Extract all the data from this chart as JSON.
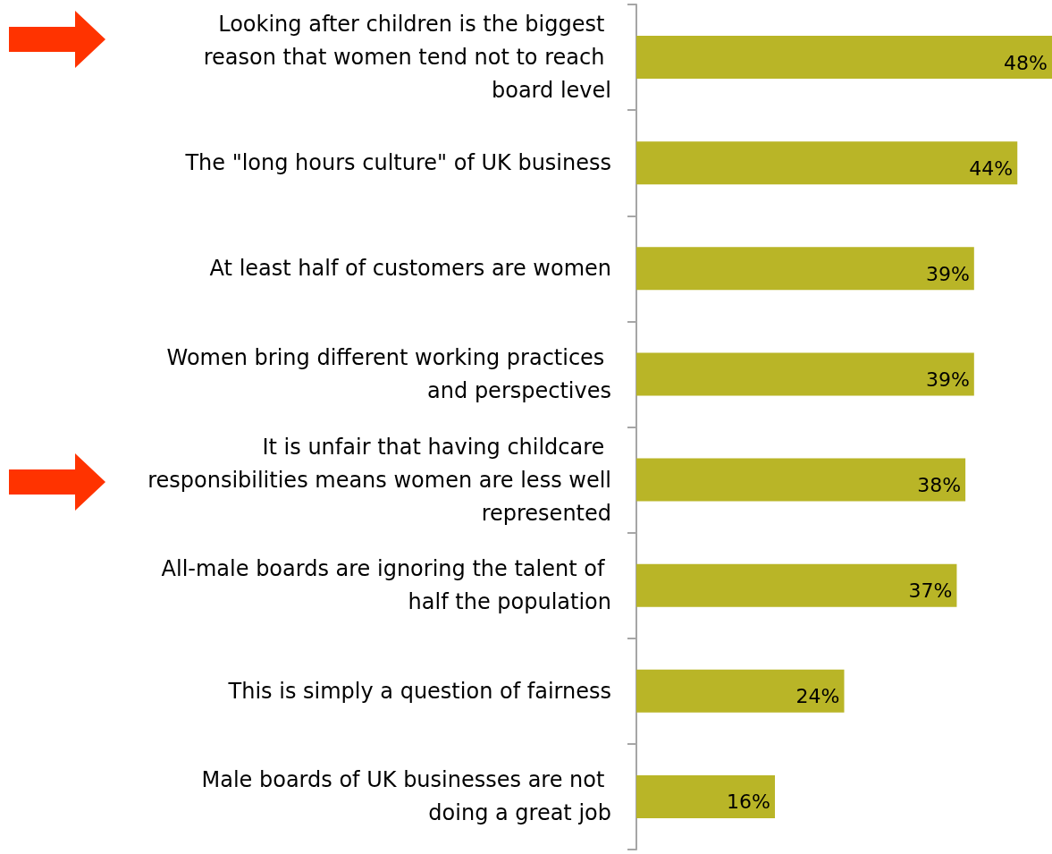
{
  "chart_data": {
    "type": "bar",
    "orientation": "horizontal",
    "categories": [
      "Looking after children is the biggest reason that women tend not to reach board level",
      "The \"long hours culture\" of UK business",
      "At least half of customers are women",
      "Women bring different working practices and perspectives",
      "It is unfair that having childcare responsibilities means women are less well represented",
      "All-male boards are ignoring the talent of half the population",
      "This is simply a question of fairness",
      "Male boards of UK businesses are not doing a great job"
    ],
    "values": [
      48,
      44,
      39,
      39,
      38,
      37,
      24,
      16
    ],
    "value_labels": [
      "48%",
      "44%",
      "39%",
      "39%",
      "38%",
      "37%",
      "24%",
      "16%"
    ],
    "color": "#b9b527"
  }
}
